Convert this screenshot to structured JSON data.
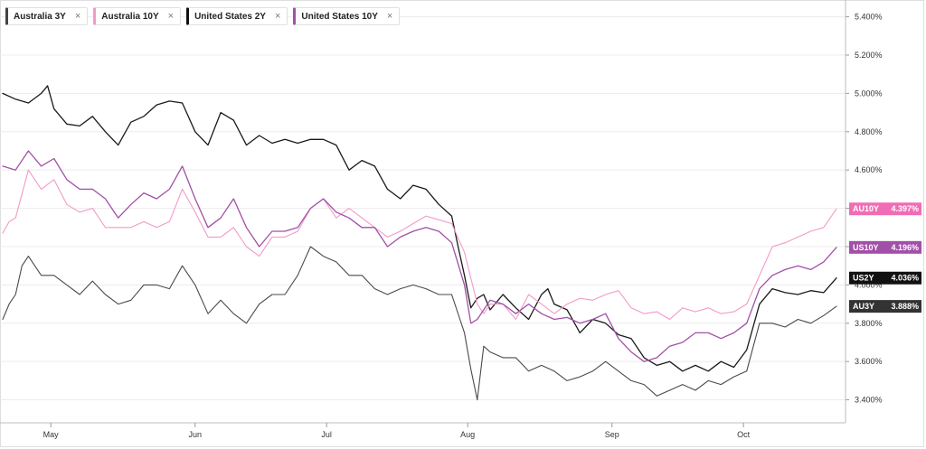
{
  "legend": [
    {
      "label": "Australia 3Y",
      "close": "×",
      "color": "#444444"
    },
    {
      "label": "Australia 10Y",
      "close": "×",
      "color": "#f39ac8"
    },
    {
      "label": "United States 2Y",
      "close": "×",
      "color": "#111111"
    },
    {
      "label": "United States 10Y",
      "close": "×",
      "color": "#a24fa8"
    }
  ],
  "chart_data": {
    "type": "line",
    "yticks": [
      "5.400%",
      "5.200%",
      "5.000%",
      "4.800%",
      "4.600%",
      "4.400%",
      "4.200%",
      "4.000%",
      "3.800%",
      "3.600%",
      "3.400%"
    ],
    "ytick_values": [
      5.4,
      5.2,
      5.0,
      4.8,
      4.6,
      4.4,
      4.2,
      4.0,
      3.8,
      3.6,
      3.4
    ],
    "ylim": [
      3.28,
      5.45
    ],
    "xlim": [
      0,
      130
    ],
    "grid": true,
    "xticks": [
      {
        "label": "May",
        "x": 7.5
      },
      {
        "label": "Jun",
        "x": 30
      },
      {
        "label": "Jul",
        "x": 50.5
      },
      {
        "label": "Aug",
        "x": 72.5
      },
      {
        "label": "Sep",
        "x": 95
      },
      {
        "label": "Oct",
        "x": 115.5
      }
    ],
    "series": [
      {
        "name": "United States 2Y",
        "color": "#1a1a1a",
        "width": 1.3,
        "tag": "US2Y",
        "value_label": "4.036%",
        "last": 4.036,
        "tag_bg": "#111111",
        "tag_fg": "#ffffff",
        "points": [
          [
            0,
            5.0
          ],
          [
            2,
            4.97
          ],
          [
            4,
            4.95
          ],
          [
            6,
            5.0
          ],
          [
            7,
            5.04
          ],
          [
            8,
            4.92
          ],
          [
            10,
            4.84
          ],
          [
            12,
            4.83
          ],
          [
            14,
            4.88
          ],
          [
            16,
            4.8
          ],
          [
            18,
            4.73
          ],
          [
            20,
            4.85
          ],
          [
            22,
            4.88
          ],
          [
            24,
            4.94
          ],
          [
            26,
            4.96
          ],
          [
            28,
            4.95
          ],
          [
            30,
            4.8
          ],
          [
            32,
            4.73
          ],
          [
            34,
            4.9
          ],
          [
            36,
            4.86
          ],
          [
            38,
            4.73
          ],
          [
            40,
            4.78
          ],
          [
            42,
            4.74
          ],
          [
            44,
            4.76
          ],
          [
            46,
            4.74
          ],
          [
            48,
            4.76
          ],
          [
            50,
            4.76
          ],
          [
            52,
            4.73
          ],
          [
            54,
            4.6
          ],
          [
            56,
            4.65
          ],
          [
            58,
            4.62
          ],
          [
            60,
            4.5
          ],
          [
            62,
            4.45
          ],
          [
            64,
            4.52
          ],
          [
            66,
            4.5
          ],
          [
            68,
            4.42
          ],
          [
            70,
            4.36
          ],
          [
            71,
            4.2
          ],
          [
            72,
            4.05
          ],
          [
            73,
            3.88
          ],
          [
            74,
            3.93
          ],
          [
            75,
            3.95
          ],
          [
            76,
            3.87
          ],
          [
            78,
            3.95
          ],
          [
            80,
            3.88
          ],
          [
            82,
            3.82
          ],
          [
            84,
            3.95
          ],
          [
            85,
            3.98
          ],
          [
            86,
            3.9
          ],
          [
            88,
            3.87
          ],
          [
            90,
            3.75
          ],
          [
            92,
            3.82
          ],
          [
            94,
            3.8
          ],
          [
            96,
            3.74
          ],
          [
            98,
            3.72
          ],
          [
            100,
            3.62
          ],
          [
            102,
            3.58
          ],
          [
            104,
            3.6
          ],
          [
            106,
            3.55
          ],
          [
            108,
            3.58
          ],
          [
            110,
            3.55
          ],
          [
            112,
            3.6
          ],
          [
            114,
            3.57
          ],
          [
            116,
            3.66
          ],
          [
            118,
            3.9
          ],
          [
            120,
            3.98
          ],
          [
            122,
            3.96
          ],
          [
            124,
            3.95
          ],
          [
            126,
            3.97
          ],
          [
            128,
            3.96
          ],
          [
            130,
            4.036
          ]
        ]
      },
      {
        "name": "Australia 10Y",
        "color": "#f39ac8",
        "width": 1.1,
        "tag": "AU10Y",
        "value_label": "4.397%",
        "last": 4.397,
        "tag_bg": "#f06db5",
        "tag_fg": "#ffffff",
        "points": [
          [
            0,
            4.27
          ],
          [
            1,
            4.33
          ],
          [
            2,
            4.35
          ],
          [
            4,
            4.6
          ],
          [
            6,
            4.5
          ],
          [
            8,
            4.55
          ],
          [
            10,
            4.42
          ],
          [
            12,
            4.38
          ],
          [
            14,
            4.4
          ],
          [
            16,
            4.3
          ],
          [
            18,
            4.3
          ],
          [
            20,
            4.3
          ],
          [
            22,
            4.33
          ],
          [
            24,
            4.3
          ],
          [
            26,
            4.33
          ],
          [
            28,
            4.5
          ],
          [
            30,
            4.38
          ],
          [
            32,
            4.25
          ],
          [
            34,
            4.25
          ],
          [
            36,
            4.3
          ],
          [
            38,
            4.2
          ],
          [
            40,
            4.15
          ],
          [
            42,
            4.25
          ],
          [
            44,
            4.25
          ],
          [
            46,
            4.28
          ],
          [
            48,
            4.4
          ],
          [
            50,
            4.45
          ],
          [
            52,
            4.35
          ],
          [
            54,
            4.4
          ],
          [
            56,
            4.35
          ],
          [
            58,
            4.3
          ],
          [
            60,
            4.25
          ],
          [
            62,
            4.28
          ],
          [
            64,
            4.32
          ],
          [
            66,
            4.36
          ],
          [
            68,
            4.34
          ],
          [
            70,
            4.32
          ],
          [
            72,
            4.17
          ],
          [
            74,
            3.9
          ],
          [
            75,
            3.85
          ],
          [
            76,
            3.9
          ],
          [
            78,
            3.9
          ],
          [
            80,
            3.82
          ],
          [
            82,
            3.95
          ],
          [
            84,
            3.9
          ],
          [
            86,
            3.85
          ],
          [
            88,
            3.9
          ],
          [
            90,
            3.93
          ],
          [
            92,
            3.92
          ],
          [
            94,
            3.95
          ],
          [
            96,
            3.97
          ],
          [
            98,
            3.88
          ],
          [
            100,
            3.85
          ],
          [
            102,
            3.86
          ],
          [
            104,
            3.82
          ],
          [
            106,
            3.88
          ],
          [
            108,
            3.86
          ],
          [
            110,
            3.88
          ],
          [
            112,
            3.85
          ],
          [
            114,
            3.86
          ],
          [
            116,
            3.9
          ],
          [
            118,
            4.05
          ],
          [
            120,
            4.2
          ],
          [
            122,
            4.22
          ],
          [
            124,
            4.25
          ],
          [
            126,
            4.28
          ],
          [
            128,
            4.3
          ],
          [
            130,
            4.397
          ]
        ]
      },
      {
        "name": "United States 10Y",
        "color": "#a24fa8",
        "width": 1.3,
        "tag": "US10Y",
        "value_label": "4.196%",
        "last": 4.196,
        "tag_bg": "#a24fa8",
        "tag_fg": "#ffffff",
        "points": [
          [
            0,
            4.62
          ],
          [
            2,
            4.6
          ],
          [
            4,
            4.7
          ],
          [
            6,
            4.62
          ],
          [
            8,
            4.66
          ],
          [
            10,
            4.55
          ],
          [
            12,
            4.5
          ],
          [
            14,
            4.5
          ],
          [
            16,
            4.45
          ],
          [
            18,
            4.35
          ],
          [
            20,
            4.42
          ],
          [
            22,
            4.48
          ],
          [
            24,
            4.45
          ],
          [
            26,
            4.5
          ],
          [
            28,
            4.62
          ],
          [
            30,
            4.45
          ],
          [
            32,
            4.3
          ],
          [
            34,
            4.35
          ],
          [
            36,
            4.45
          ],
          [
            38,
            4.3
          ],
          [
            40,
            4.2
          ],
          [
            42,
            4.28
          ],
          [
            44,
            4.28
          ],
          [
            46,
            4.3
          ],
          [
            48,
            4.4
          ],
          [
            50,
            4.45
          ],
          [
            52,
            4.38
          ],
          [
            54,
            4.35
          ],
          [
            56,
            4.3
          ],
          [
            58,
            4.3
          ],
          [
            60,
            4.2
          ],
          [
            62,
            4.25
          ],
          [
            64,
            4.28
          ],
          [
            66,
            4.3
          ],
          [
            68,
            4.28
          ],
          [
            70,
            4.22
          ],
          [
            72,
            4.0
          ],
          [
            73,
            3.8
          ],
          [
            74,
            3.82
          ],
          [
            76,
            3.92
          ],
          [
            78,
            3.9
          ],
          [
            80,
            3.85
          ],
          [
            82,
            3.9
          ],
          [
            84,
            3.85
          ],
          [
            86,
            3.82
          ],
          [
            88,
            3.83
          ],
          [
            90,
            3.8
          ],
          [
            92,
            3.82
          ],
          [
            94,
            3.85
          ],
          [
            96,
            3.72
          ],
          [
            98,
            3.65
          ],
          [
            100,
            3.6
          ],
          [
            102,
            3.62
          ],
          [
            104,
            3.68
          ],
          [
            106,
            3.7
          ],
          [
            108,
            3.75
          ],
          [
            110,
            3.75
          ],
          [
            112,
            3.72
          ],
          [
            114,
            3.75
          ],
          [
            116,
            3.8
          ],
          [
            118,
            3.98
          ],
          [
            120,
            4.05
          ],
          [
            122,
            4.08
          ],
          [
            124,
            4.1
          ],
          [
            126,
            4.08
          ],
          [
            128,
            4.12
          ],
          [
            130,
            4.196
          ]
        ]
      },
      {
        "name": "Australia 3Y",
        "color": "#4a4a4a",
        "width": 1.1,
        "tag": "AU3Y",
        "value_label": "3.888%",
        "last": 3.888,
        "tag_bg": "#333333",
        "tag_fg": "#ffffff",
        "points": [
          [
            0,
            3.82
          ],
          [
            1,
            3.9
          ],
          [
            2,
            3.95
          ],
          [
            3,
            4.1
          ],
          [
            4,
            4.15
          ],
          [
            6,
            4.05
          ],
          [
            8,
            4.05
          ],
          [
            10,
            4.0
          ],
          [
            12,
            3.95
          ],
          [
            14,
            4.02
          ],
          [
            16,
            3.95
          ],
          [
            18,
            3.9
          ],
          [
            20,
            3.92
          ],
          [
            22,
            4.0
          ],
          [
            24,
            4.0
          ],
          [
            26,
            3.98
          ],
          [
            28,
            4.1
          ],
          [
            30,
            4.0
          ],
          [
            32,
            3.85
          ],
          [
            34,
            3.92
          ],
          [
            36,
            3.85
          ],
          [
            38,
            3.8
          ],
          [
            40,
            3.9
          ],
          [
            42,
            3.95
          ],
          [
            44,
            3.95
          ],
          [
            46,
            4.05
          ],
          [
            48,
            4.2
          ],
          [
            50,
            4.15
          ],
          [
            52,
            4.12
          ],
          [
            54,
            4.05
          ],
          [
            56,
            4.05
          ],
          [
            58,
            3.98
          ],
          [
            60,
            3.95
          ],
          [
            62,
            3.98
          ],
          [
            64,
            4.0
          ],
          [
            66,
            3.98
          ],
          [
            68,
            3.95
          ],
          [
            70,
            3.95
          ],
          [
            72,
            3.75
          ],
          [
            73,
            3.56
          ],
          [
            74,
            3.4
          ],
          [
            75,
            3.68
          ],
          [
            76,
            3.65
          ],
          [
            78,
            3.62
          ],
          [
            80,
            3.62
          ],
          [
            82,
            3.55
          ],
          [
            84,
            3.58
          ],
          [
            86,
            3.55
          ],
          [
            88,
            3.5
          ],
          [
            90,
            3.52
          ],
          [
            92,
            3.55
          ],
          [
            94,
            3.6
          ],
          [
            96,
            3.55
          ],
          [
            98,
            3.5
          ],
          [
            100,
            3.48
          ],
          [
            102,
            3.42
          ],
          [
            104,
            3.45
          ],
          [
            106,
            3.48
          ],
          [
            108,
            3.45
          ],
          [
            110,
            3.5
          ],
          [
            112,
            3.48
          ],
          [
            114,
            3.52
          ],
          [
            116,
            3.55
          ],
          [
            118,
            3.8
          ],
          [
            120,
            3.8
          ],
          [
            122,
            3.78
          ],
          [
            124,
            3.82
          ],
          [
            126,
            3.8
          ],
          [
            128,
            3.84
          ],
          [
            130,
            3.888
          ]
        ]
      }
    ]
  }
}
